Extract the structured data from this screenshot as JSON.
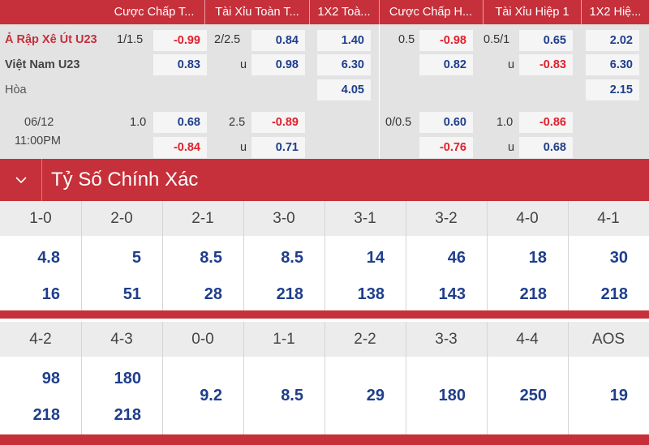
{
  "odds_table": {
    "headers": [
      "Cược Chấp T...",
      "Tài Xỉu Toàn T...",
      "1X2 Toà...",
      "Cược Chấp H...",
      "Tài Xỉu Hiệp 1",
      "1X2 Hiệ..."
    ],
    "match1": {
      "home_team": "Ả Rập Xê Út U23",
      "away_team": "Việt Nam U23",
      "draw_label": "Hòa",
      "ft_handicap_line": "1/1.5",
      "ft_handicap_home": "-0.99",
      "ft_handicap_away": "0.83",
      "ft_ou_line": "2/2.5",
      "ft_ou_over": "0.84",
      "ft_ou_under_label": "u",
      "ft_ou_under": "0.98",
      "ft_1x2_home": "1.40",
      "ft_1x2_away": "6.30",
      "ft_1x2_draw": "4.05",
      "h1_handicap_line": "0.5",
      "h1_handicap_home": "-0.98",
      "h1_handicap_away": "0.82",
      "h1_ou_line": "0.5/1",
      "h1_ou_over": "0.65",
      "h1_ou_under_label": "u",
      "h1_ou_under": "-0.83",
      "h1_1x2_home": "2.02",
      "h1_1x2_away": "6.30",
      "h1_1x2_draw": "2.15"
    },
    "match2": {
      "date": "06/12",
      "time": "11:00PM",
      "ft_handicap_line": "1.0",
      "ft_handicap_home": "0.68",
      "ft_handicap_away": "-0.84",
      "ft_ou_line": "2.5",
      "ft_ou_over": "-0.89",
      "ft_ou_under_label": "u",
      "ft_ou_under": "0.71",
      "h1_handicap_line": "0/0.5",
      "h1_handicap_home": "0.60",
      "h1_handicap_away": "-0.76",
      "h1_ou_line": "1.0",
      "h1_ou_over": "-0.86",
      "h1_ou_under_label": "u",
      "h1_ou_under": "0.68"
    }
  },
  "section": {
    "title": "Tỷ Số Chính Xác",
    "toggle_icon": "chevron-down-icon"
  },
  "correct_score": {
    "grid1": [
      {
        "score": "1-0",
        "home": "4.8",
        "away": "16"
      },
      {
        "score": "2-0",
        "home": "5",
        "away": "51"
      },
      {
        "score": "2-1",
        "home": "8.5",
        "away": "28"
      },
      {
        "score": "3-0",
        "home": "8.5",
        "away": "218"
      },
      {
        "score": "3-1",
        "home": "14",
        "away": "138"
      },
      {
        "score": "3-2",
        "home": "46",
        "away": "143"
      },
      {
        "score": "4-0",
        "home": "18",
        "away": "218"
      },
      {
        "score": "4-1",
        "home": "30",
        "away": "218"
      }
    ],
    "grid2": [
      {
        "score": "4-2",
        "home": "98",
        "away": "218"
      },
      {
        "score": "4-3",
        "home": "180",
        "away": "218"
      },
      {
        "score": "0-0",
        "single": "9.2"
      },
      {
        "score": "1-1",
        "single": "8.5"
      },
      {
        "score": "2-2",
        "single": "29"
      },
      {
        "score": "3-3",
        "single": "180"
      },
      {
        "score": "4-4",
        "single": "250"
      },
      {
        "score": "AOS",
        "single": "19"
      }
    ]
  },
  "colors": {
    "brand_red": "#c6303a",
    "odds_blue": "#1f3e8c",
    "negative_red": "#e0202c"
  }
}
